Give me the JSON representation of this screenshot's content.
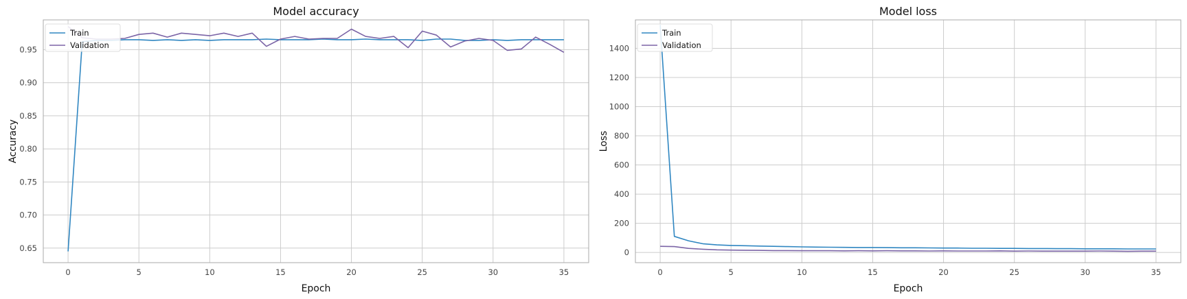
{
  "chart_data": [
    {
      "type": "line",
      "title": "Model accuracy",
      "xlabel": "Epoch",
      "ylabel": "Accuracy",
      "xlim": [
        -1.75,
        36.75
      ],
      "ylim": [
        0.628,
        0.995
      ],
      "xticks": [
        0,
        5,
        10,
        15,
        20,
        25,
        30,
        35
      ],
      "yticks": [
        0.65,
        0.7,
        0.75,
        0.8,
        0.85,
        0.9,
        0.95
      ],
      "ytick_labels": [
        "0.65",
        "0.70",
        "0.75",
        "0.80",
        "0.85",
        "0.90",
        "0.95"
      ],
      "grid": true,
      "legend": "top-left",
      "x": [
        0,
        1,
        2,
        3,
        4,
        5,
        6,
        7,
        8,
        9,
        10,
        11,
        12,
        13,
        14,
        15,
        16,
        17,
        18,
        19,
        20,
        21,
        22,
        23,
        24,
        25,
        26,
        27,
        28,
        29,
        30,
        31,
        32,
        33,
        34,
        35
      ],
      "series": [
        {
          "name": "Train",
          "color": "#2f86c1",
          "values": [
            0.645,
            0.962,
            0.964,
            0.964,
            0.965,
            0.965,
            0.964,
            0.965,
            0.964,
            0.965,
            0.964,
            0.965,
            0.965,
            0.965,
            0.966,
            0.965,
            0.965,
            0.965,
            0.966,
            0.965,
            0.965,
            0.966,
            0.965,
            0.965,
            0.965,
            0.964,
            0.966,
            0.966,
            0.964,
            0.964,
            0.965,
            0.964,
            0.965,
            0.965,
            0.965,
            0.965
          ]
        },
        {
          "name": "Validation",
          "color": "#7b64a6",
          "values": [
            0.985,
            0.968,
            0.966,
            0.966,
            0.967,
            0.973,
            0.975,
            0.969,
            0.975,
            0.973,
            0.971,
            0.975,
            0.97,
            0.975,
            0.955,
            0.966,
            0.97,
            0.966,
            0.967,
            0.967,
            0.981,
            0.97,
            0.967,
            0.97,
            0.953,
            0.978,
            0.972,
            0.954,
            0.963,
            0.967,
            0.964,
            0.949,
            0.951,
            0.969,
            0.958,
            0.946
          ]
        }
      ]
    },
    {
      "type": "line",
      "title": "Model loss",
      "xlabel": "Epoch",
      "ylabel": "Loss",
      "xlim": [
        -1.75,
        36.75
      ],
      "ylim": [
        -70,
        1595
      ],
      "xticks": [
        0,
        5,
        10,
        15,
        20,
        25,
        30,
        35
      ],
      "yticks": [
        0,
        200,
        400,
        600,
        800,
        1000,
        1200,
        1400
      ],
      "ytick_labels": [
        "0",
        "200",
        "400",
        "600",
        "800",
        "1000",
        "1200",
        "1400"
      ],
      "grid": true,
      "legend": "top-left",
      "x": [
        0,
        1,
        2,
        3,
        4,
        5,
        6,
        7,
        8,
        9,
        10,
        11,
        12,
        13,
        14,
        15,
        16,
        17,
        18,
        19,
        20,
        21,
        22,
        23,
        24,
        25,
        26,
        27,
        28,
        29,
        30,
        31,
        32,
        33,
        34,
        35
      ],
      "series": [
        {
          "name": "Train",
          "color": "#2f86c1",
          "values": [
            1560,
            110,
            80,
            60,
            52,
            48,
            46,
            44,
            42,
            40,
            38,
            37,
            36,
            35,
            34,
            34,
            33,
            32,
            32,
            31,
            30,
            30,
            29,
            29,
            28,
            28,
            27,
            27,
            26,
            26,
            25,
            25,
            25,
            24,
            24,
            24
          ]
        },
        {
          "name": "Validation",
          "color": "#7b64a6",
          "values": [
            42,
            40,
            28,
            22,
            18,
            16,
            15,
            14,
            13,
            13,
            12,
            12,
            12,
            11,
            12,
            11,
            12,
            11,
            11,
            10,
            11,
            10,
            10,
            10,
            11,
            9,
            10,
            9,
            9,
            9,
            9,
            10,
            9,
            8,
            9,
            9
          ]
        }
      ]
    }
  ]
}
